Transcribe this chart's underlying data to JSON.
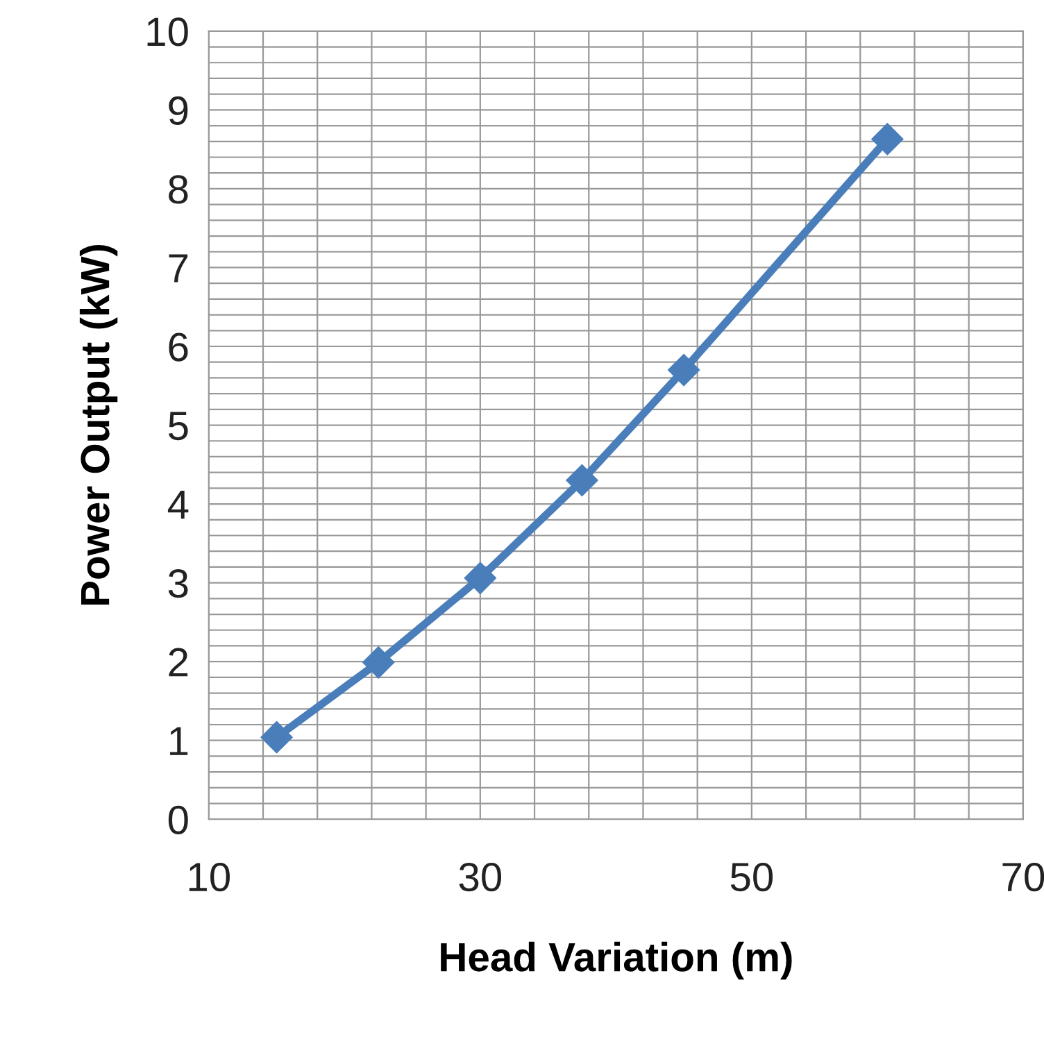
{
  "chart_data": {
    "type": "line",
    "xlabel": "Head Variation (m)",
    "ylabel": "Power Output (kW)",
    "x": [
      15,
      22.5,
      30,
      37.5,
      45,
      60
    ],
    "series": [
      {
        "color": "#4a7ebb",
        "values": [
          1.04,
          1.99,
          3.06,
          4.3,
          5.7,
          8.63
        ]
      }
    ],
    "marker": "diamond",
    "line_style": "solid",
    "grid": true,
    "legend": false,
    "xlim": [
      10,
      70
    ],
    "ylim": [
      0,
      10
    ],
    "xticks": [
      10,
      {
        "value": 14,
        "label": null
      },
      {
        "value": 18,
        "label": null
      },
      {
        "value": 22,
        "label": null
      },
      {
        "value": 26,
        "label": null
      },
      30,
      {
        "value": 34,
        "label": null
      },
      {
        "value": 38,
        "label": null
      },
      {
        "value": 42,
        "label": null
      },
      {
        "value": 46,
        "label": null
      },
      50,
      {
        "value": 54,
        "label": null
      },
      {
        "value": 58,
        "label": null
      },
      {
        "value": 62,
        "label": null
      },
      {
        "value": 66,
        "label": null
      },
      70
    ],
    "yticks": [
      0,
      {
        "value": 0.2,
        "label": null
      },
      {
        "value": 0.4,
        "label": null
      },
      {
        "value": 0.6,
        "label": null
      },
      {
        "value": 0.8,
        "label": null
      },
      1,
      {
        "value": 1.2,
        "label": null
      },
      {
        "value": 1.4,
        "label": null
      },
      {
        "value": 1.6,
        "label": null
      },
      {
        "value": 1.8,
        "label": null
      },
      2,
      {
        "value": 2.2,
        "label": null
      },
      {
        "value": 2.4,
        "label": null
      },
      {
        "value": 2.6,
        "label": null
      },
      {
        "value": 2.8,
        "label": null
      },
      3,
      {
        "value": 3.2,
        "label": null
      },
      {
        "value": 3.4,
        "label": null
      },
      {
        "value": 3.6,
        "label": null
      },
      {
        "value": 3.8,
        "label": null
      },
      4,
      {
        "value": 4.2,
        "label": null
      },
      {
        "value": 4.4,
        "label": null
      },
      {
        "value": 4.6,
        "label": null
      },
      {
        "value": 4.8,
        "label": null
      },
      5,
      {
        "value": 5.2,
        "label": null
      },
      {
        "value": 5.4,
        "label": null
      },
      {
        "value": 5.6,
        "label": null
      },
      {
        "value": 5.8,
        "label": null
      },
      6,
      {
        "value": 6.2,
        "label": null
      },
      {
        "value": 6.4,
        "label": null
      },
      {
        "value": 6.6,
        "label": null
      },
      {
        "value": 6.8,
        "label": null
      },
      7,
      {
        "value": 7.2,
        "label": null
      },
      {
        "value": 7.4,
        "label": null
      },
      {
        "value": 7.6,
        "label": null
      },
      {
        "value": 7.8,
        "label": null
      },
      8,
      {
        "value": 8.2,
        "label": null
      },
      {
        "value": 8.4,
        "label": null
      },
      {
        "value": 8.6,
        "label": null
      },
      {
        "value": 8.8,
        "label": null
      },
      9,
      {
        "value": 9.2,
        "label": null
      },
      {
        "value": 9.4,
        "label": null
      },
      {
        "value": 9.6,
        "label": null
      },
      {
        "value": 9.8,
        "label": null
      },
      10
    ]
  }
}
